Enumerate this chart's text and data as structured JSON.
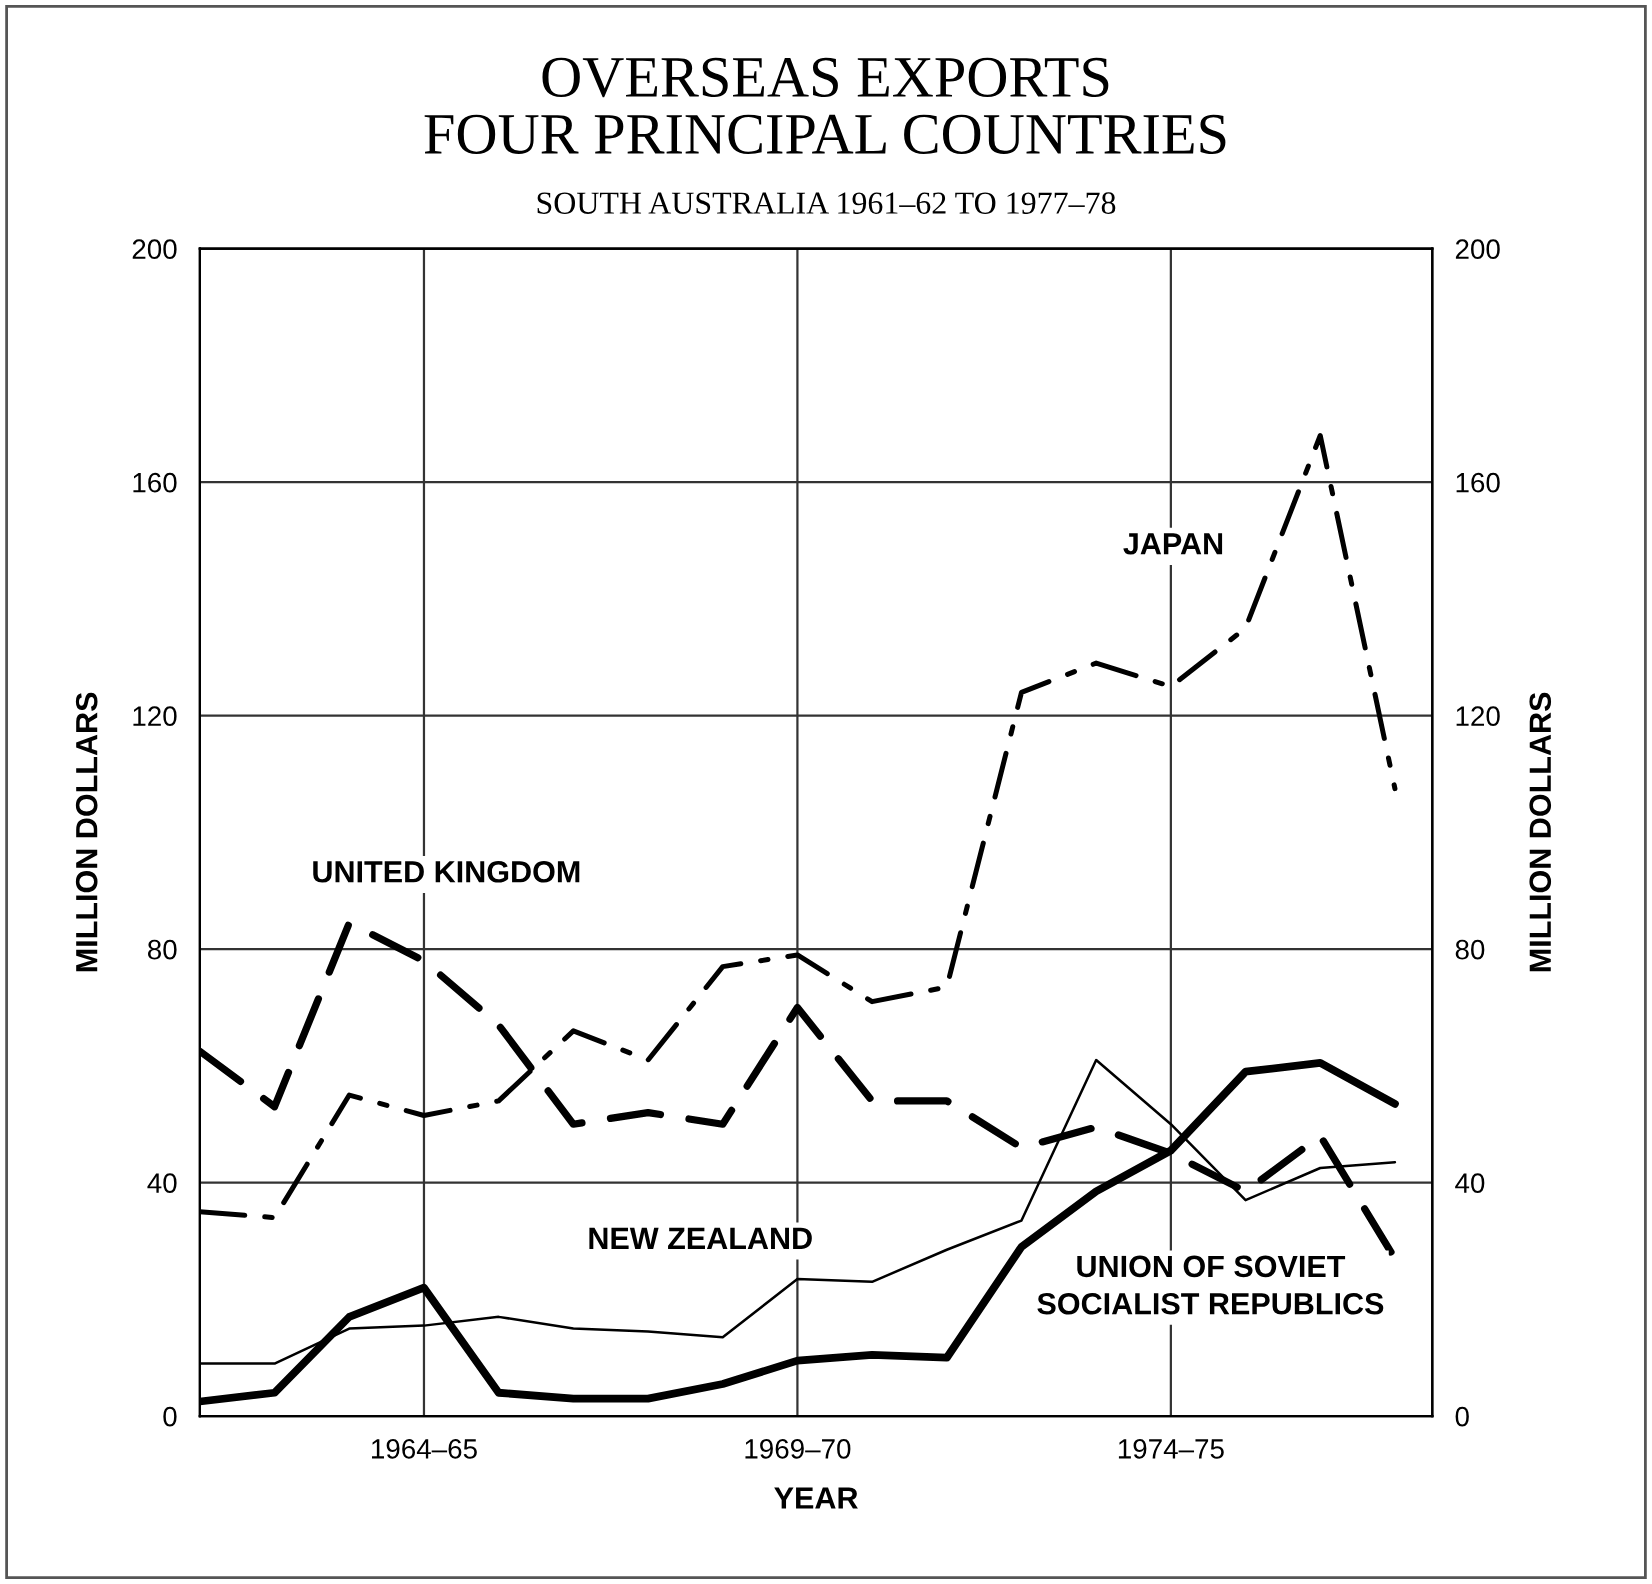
{
  "chart_data": {
    "type": "line",
    "title": "OVERSEAS EXPORTS\nFOUR PRINCIPAL COUNTRIES",
    "subtitle": "SOUTH AUSTRALIA 1961–62 TO 1977–78",
    "xlabel": "YEAR",
    "ylabel": "MILLION DOLLARS",
    "y2label": "MILLION DOLLARS",
    "categories": [
      null,
      null,
      null,
      "1964–65",
      null,
      null,
      null,
      null,
      "1969–70",
      null,
      null,
      null,
      null,
      "1974–75",
      null,
      null,
      null
    ],
    "series": [
      {
        "name": "JAPAN",
        "color": "#000000",
        "line_style": "dashdot",
        "values": [
          35,
          34,
          55,
          51.5,
          54,
          66,
          61,
          77,
          79,
          71,
          73.5,
          124,
          129,
          125,
          135,
          168,
          107.5
        ]
      },
      {
        "name": "UNITED KINGDOM",
        "color": "#000000",
        "line_style": "dashed",
        "values": [
          62.5,
          53,
          84.5,
          78,
          67,
          50,
          52,
          50,
          70,
          54,
          54,
          46,
          49.5,
          45,
          38.5,
          48,
          27
        ]
      },
      {
        "name": "NEW ZEALAND",
        "color": "#000000",
        "line_style": "solid",
        "values": [
          9,
          9,
          15,
          15.5,
          17,
          15,
          14.5,
          13.5,
          23.5,
          23,
          28.5,
          33.5,
          61,
          50,
          37,
          42.5,
          43.5
        ]
      },
      {
        "name": "UNION OF SOVIET\nSOCIALIST REPUBLICS",
        "color": "#000000",
        "line_style": "solid",
        "values": [
          2.5,
          4,
          17,
          22,
          4,
          3,
          3,
          5.5,
          9.5,
          10.5,
          10,
          29,
          38.5,
          45.5,
          59,
          60.5,
          53.5
        ]
      }
    ],
    "ylim": [
      0,
      200
    ],
    "yticks": [
      0,
      40,
      80,
      120,
      160,
      200
    ],
    "y2lim": [
      0,
      200
    ],
    "y2ticks": [
      0,
      40,
      80,
      120,
      160,
      200
    ],
    "grid": true,
    "legend": false,
    "marker": "none"
  }
}
